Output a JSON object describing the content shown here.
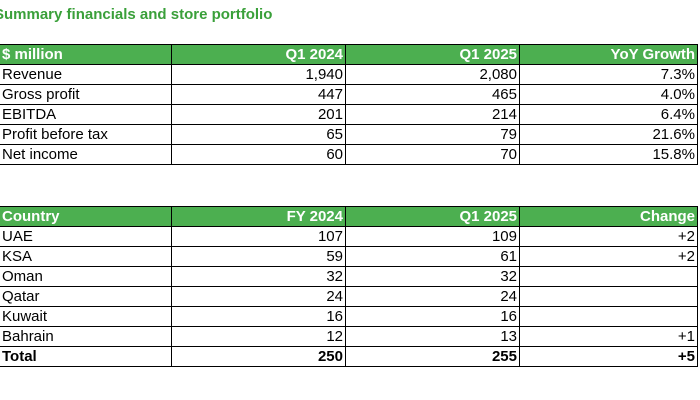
{
  "title": "Summary financials and store portfolio",
  "financials": {
    "headers": [
      "$ million",
      "Q1 2024",
      "Q1 2025",
      "YoY Growth"
    ],
    "rows": [
      [
        "Revenue",
        "1,940",
        "2,080",
        "7.3%"
      ],
      [
        "Gross profit",
        "447",
        "465",
        "4.0%"
      ],
      [
        "EBITDA",
        "201",
        "214",
        "6.4%"
      ],
      [
        "Profit before tax",
        "65",
        "79",
        "21.6%"
      ],
      [
        "Net income",
        "60",
        "70",
        "15.8%"
      ]
    ]
  },
  "portfolio": {
    "headers": [
      "Country",
      "FY 2024",
      "Q1 2025",
      "Change"
    ],
    "rows": [
      [
        "UAE",
        "107",
        "109",
        "+2"
      ],
      [
        "KSA",
        "59",
        "61",
        "+2"
      ],
      [
        "Oman",
        "32",
        "32",
        ""
      ],
      [
        "Qatar",
        "24",
        "24",
        ""
      ],
      [
        "Kuwait",
        "16",
        "16",
        ""
      ],
      [
        "Bahrain",
        "12",
        "13",
        "+1"
      ]
    ],
    "total": [
      "Total",
      "250",
      "255",
      "+5"
    ]
  },
  "colors": {
    "header_bg": "#4caf50",
    "title": "#3aa03a"
  }
}
